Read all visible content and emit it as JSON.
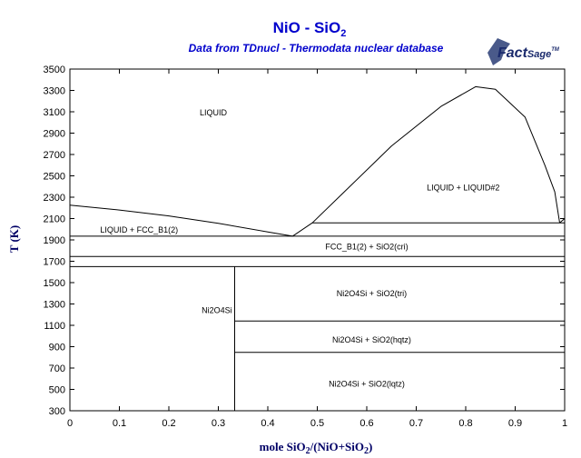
{
  "chart_data": {
    "type": "line",
    "title": "NiO - SiO",
    "title_subscript": "2",
    "subtitle": "Data from TDnucl - Thermodata nuclear database",
    "logo": {
      "part1": "Fact",
      "part2": "Sage",
      "mark": "TM"
    },
    "xlabel_parts": [
      "mole SiO",
      "2",
      "/(NiO+SiO",
      "2",
      ")"
    ],
    "ylabel": "T (K)",
    "xlim": [
      0,
      1
    ],
    "ylim": [
      300,
      3500
    ],
    "x_ticks": [
      0,
      0.1,
      0.2,
      0.3,
      0.4,
      0.5,
      0.6,
      0.7,
      0.8,
      0.9,
      1
    ],
    "x_tick_labels": [
      "0",
      "0.1",
      "0.2",
      "0.3",
      "0.4",
      "0.5",
      "0.6",
      "0.7",
      "0.8",
      "0.9",
      "1"
    ],
    "y_ticks": [
      300,
      500,
      700,
      900,
      1100,
      1300,
      1500,
      1700,
      1900,
      2100,
      2300,
      2500,
      2700,
      2900,
      3100,
      3300,
      3500
    ],
    "y_tick_labels": [
      "300",
      "500",
      "700",
      "900",
      "1100",
      "1300",
      "1500",
      "1700",
      "1900",
      "2100",
      "2300",
      "2500",
      "2700",
      "2900",
      "3100",
      "3300",
      "3500"
    ],
    "grid": false,
    "series": [
      {
        "id": "liquidus-nio",
        "x": [
          0,
          0.1,
          0.2,
          0.3,
          0.4,
          0.45
        ],
        "y": [
          2225,
          2180,
          2125,
          2055,
          1975,
          1935
        ]
      },
      {
        "id": "liquidus-sio2",
        "x": [
          0.45,
          0.49,
          0.55,
          0.65,
          0.75,
          0.82,
          0.86,
          0.92,
          0.96,
          0.98,
          0.99
        ],
        "y": [
          1935,
          2060,
          2330,
          2780,
          3150,
          3335,
          3310,
          3050,
          2600,
          2350,
          2060
        ]
      },
      {
        "id": "liquidus-end",
        "x": [
          0.99,
          1.0
        ],
        "y": [
          2060,
          2100
        ]
      },
      {
        "id": "monotectic-line",
        "x": [
          0.49,
          1.0
        ],
        "y": [
          2060,
          2060
        ]
      },
      {
        "id": "eutectic-line",
        "x": [
          0,
          1.0
        ],
        "y": [
          1935,
          1935
        ]
      },
      {
        "id": "cristobalite-tridymite-line",
        "x": [
          0,
          1.0
        ],
        "y": [
          1745,
          1745
        ]
      },
      {
        "id": "ni2sio4-decomposition-line",
        "x": [
          0,
          1.0
        ],
        "y": [
          1650,
          1650
        ]
      },
      {
        "id": "tridymite-hqtz-line",
        "x": [
          0.333,
          1.0
        ],
        "y": [
          1140,
          1140
        ]
      },
      {
        "id": "hqtz-lqtz-line",
        "x": [
          0.333,
          1.0
        ],
        "y": [
          846,
          846
        ]
      },
      {
        "id": "ni2o4si-compound-line",
        "x": [
          0.333,
          0.333
        ],
        "y": [
          300,
          1650
        ]
      }
    ],
    "annotations": [
      {
        "text": "LIQUID",
        "x": 0.29,
        "y": 3090
      },
      {
        "text": "LIQUID + LIQUID#2",
        "x": 0.795,
        "y": 2390
      },
      {
        "text": "LIQUID + FCC_B1(2)",
        "x": 0.14,
        "y": 1995
      },
      {
        "text": "FCC_B1(2) + SiO2(cri)",
        "x": 0.6,
        "y": 1835
      },
      {
        "text": "Ni2O4Si + SiO2(tri)",
        "x": 0.61,
        "y": 1400
      },
      {
        "text": "Ni2O4Si",
        "x": 0.297,
        "y": 1240
      },
      {
        "text": "Ni2O4Si + SiO2(hqtz)",
        "x": 0.61,
        "y": 965
      },
      {
        "text": "Ni2O4Si + SiO2(lqtz)",
        "x": 0.6,
        "y": 550
      }
    ]
  }
}
